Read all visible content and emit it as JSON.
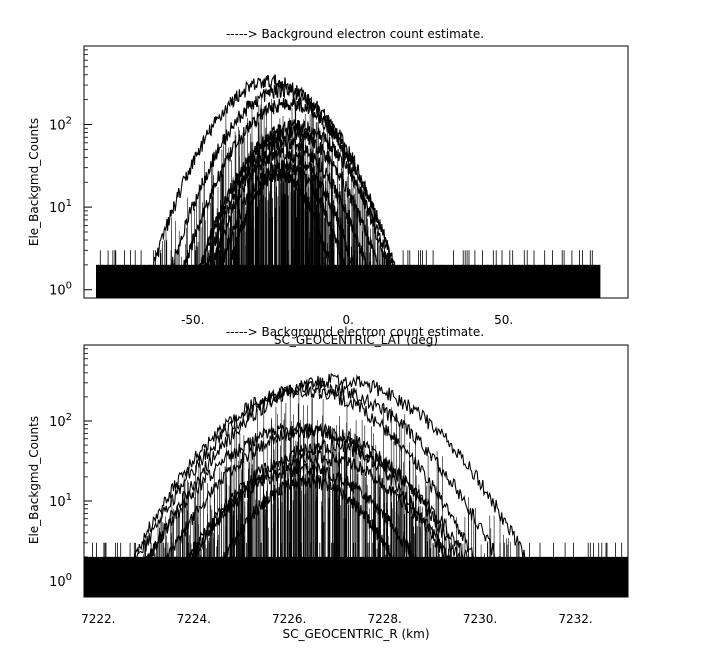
{
  "chart_data": [
    {
      "type": "line",
      "title": "-----> Background electron count estimate.",
      "xlabel": "SC_GEOCENTRIC_LAT (deg)",
      "ylabel": "Ele_Backgmd_Counts",
      "xlim": [
        -85,
        90
      ],
      "ylim_log10": [
        -0.1,
        2.95
      ],
      "y_scale": "log",
      "grid": false,
      "x_ticks": [
        {
          "value": -50,
          "label": "-50."
        },
        {
          "value": 0,
          "label": "0."
        },
        {
          "value": 50,
          "label": "50."
        }
      ],
      "y_ticks": [
        {
          "value": 1,
          "base": "10",
          "exp": "0"
        },
        {
          "value": 10,
          "base": "10",
          "exp": "1"
        },
        {
          "value": 100,
          "base": "10",
          "exp": "2"
        }
      ],
      "noise_x_range": [
        -81,
        81
      ],
      "series": [
        {
          "peak": 330,
          "center": -25,
          "halfwidth": 40
        },
        {
          "peak": 260,
          "center": -21,
          "halfwidth": 38
        },
        {
          "peak": 180,
          "center": -19,
          "halfwidth": 36
        },
        {
          "peak": 95,
          "center": -17,
          "halfwidth": 33
        },
        {
          "peak": 80,
          "center": -19,
          "halfwidth": 31
        },
        {
          "peak": 60,
          "center": -20,
          "halfwidth": 28
        },
        {
          "peak": 45,
          "center": -21,
          "halfwidth": 25
        },
        {
          "peak": 32,
          "center": -21,
          "halfwidth": 22
        },
        {
          "peak": 25,
          "center": -22,
          "halfwidth": 18
        }
      ]
    },
    {
      "type": "line",
      "title": "-----> Background electron count estimate.",
      "xlabel": "SC_GEOCENTRIC_R (km)",
      "ylabel": "Ele_Backgmd_Counts",
      "xlim": [
        7221.7,
        7233.1
      ],
      "ylim_log10": [
        -0.2,
        2.95
      ],
      "y_scale": "log",
      "grid": false,
      "x_ticks": [
        {
          "value": 7222,
          "label": "7222."
        },
        {
          "value": 7224,
          "label": "7224."
        },
        {
          "value": 7226,
          "label": "7226."
        },
        {
          "value": 7228,
          "label": "7228."
        },
        {
          "value": 7230,
          "label": "7230."
        },
        {
          "value": 7232,
          "label": "7232."
        }
      ],
      "y_ticks": [
        {
          "value": 1,
          "base": "10",
          "exp": "0"
        },
        {
          "value": 10,
          "base": "10",
          "exp": "1"
        },
        {
          "value": 100,
          "base": "10",
          "exp": "2"
        }
      ],
      "noise_x_range": [
        7221.7,
        7233.1
      ],
      "series": [
        {
          "peak": 320,
          "center": 7227.0,
          "halfwidth": 4.2
        },
        {
          "peak": 260,
          "center": 7226.6,
          "halfwidth": 4.0
        },
        {
          "peak": 240,
          "center": 7226.3,
          "halfwidth": 3.8
        },
        {
          "peak": 80,
          "center": 7226.2,
          "halfwidth": 3.4
        },
        {
          "peak": 75,
          "center": 7226.5,
          "halfwidth": 3.3
        },
        {
          "peak": 48,
          "center": 7226.8,
          "halfwidth": 3.2
        },
        {
          "peak": 35,
          "center": 7226.6,
          "halfwidth": 3.0
        },
        {
          "peak": 25,
          "center": 7226.3,
          "halfwidth": 2.6
        },
        {
          "peak": 18,
          "center": 7226.4,
          "halfwidth": 2.0
        }
      ]
    }
  ]
}
